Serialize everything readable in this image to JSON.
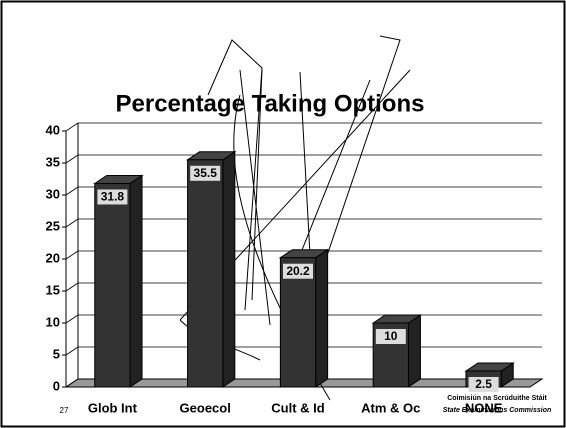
{
  "chart_data": {
    "type": "bar",
    "title": "Percentage Taking Options",
    "categories": [
      "Glob Int",
      "Geoecol",
      "Cult & Id",
      "Atm & Oc",
      "NONE"
    ],
    "values": [
      31.8,
      35.5,
      20.2,
      10,
      2.5
    ],
    "color": "#333333",
    "ylim": [
      0,
      40
    ],
    "yticks": [
      0,
      5,
      10,
      15,
      20,
      25,
      30,
      35,
      40
    ],
    "grid": true
  },
  "slide_number": "27",
  "footer": [
    "Coimisiún na Scrúduithe Stáit",
    "State Examinations Commission"
  ]
}
